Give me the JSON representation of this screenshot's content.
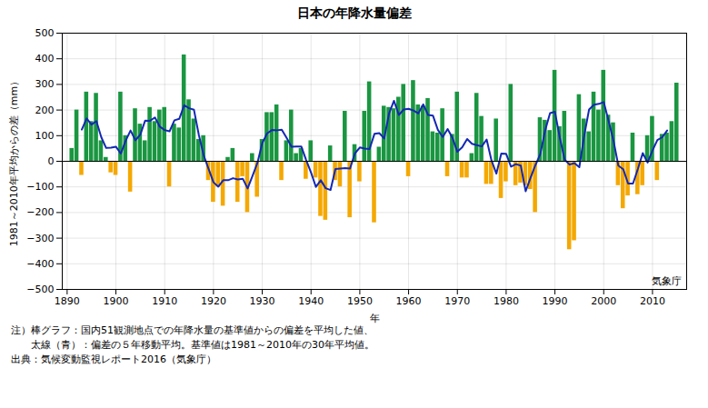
{
  "chart_data": {
    "type": "bar",
    "title": "日本の年降水量偏差",
    "xlabel": "年",
    "ylabel": "1981～2010年平均からの差（mm）",
    "annotations": [
      "気象庁",
      "注）棒グラフ：国内51観測地点での年降水量の基準値からの偏差を平均した値、",
      "　　太線（青）：偏差の５年移動平均。基準値は1981～2010年の30年平均値。",
      "出典：気候変動監視レポート2016（気象庁）"
    ],
    "x": [
      1891,
      1892,
      1893,
      1894,
      1895,
      1896,
      1897,
      1898,
      1899,
      1900,
      1901,
      1902,
      1903,
      1904,
      1905,
      1906,
      1907,
      1908,
      1909,
      1910,
      1911,
      1912,
      1913,
      1914,
      1915,
      1916,
      1917,
      1918,
      1919,
      1920,
      1921,
      1922,
      1923,
      1924,
      1925,
      1926,
      1927,
      1928,
      1929,
      1930,
      1931,
      1932,
      1933,
      1934,
      1935,
      1936,
      1937,
      1938,
      1939,
      1940,
      1941,
      1942,
      1943,
      1944,
      1945,
      1946,
      1947,
      1948,
      1949,
      1950,
      1951,
      1952,
      1953,
      1954,
      1955,
      1956,
      1957,
      1958,
      1959,
      1960,
      1961,
      1962,
      1963,
      1964,
      1965,
      1966,
      1967,
      1968,
      1969,
      1970,
      1971,
      1972,
      1973,
      1974,
      1975,
      1976,
      1977,
      1978,
      1979,
      1980,
      1981,
      1982,
      1983,
      1984,
      1985,
      1986,
      1987,
      1988,
      1989,
      1990,
      1991,
      1992,
      1993,
      1994,
      1995,
      1996,
      1997,
      1998,
      1999,
      2000,
      2001,
      2002,
      2003,
      2004,
      2005,
      2006,
      2007,
      2008,
      2009,
      2010,
      2011,
      2012,
      2013,
      2014,
      2015
    ],
    "series": [
      {
        "type": "bar",
        "values": [
          50,
          200,
          -55,
          270,
          155,
          265,
          80,
          15,
          -45,
          -55,
          270,
          100,
          -120,
          205,
          145,
          80,
          210,
          155,
          200,
          210,
          -100,
          145,
          130,
          415,
          240,
          165,
          85,
          100,
          -75,
          -160,
          -100,
          -175,
          15,
          50,
          -160,
          -60,
          -200,
          30,
          -140,
          85,
          190,
          190,
          220,
          -75,
          80,
          200,
          30,
          50,
          -70,
          80,
          -65,
          -215,
          -230,
          60,
          -75,
          -100,
          195,
          -220,
          65,
          -80,
          195,
          310,
          -240,
          55,
          215,
          210,
          205,
          250,
          300,
          -60,
          315,
          220,
          215,
          245,
          115,
          110,
          205,
          -60,
          105,
          270,
          -65,
          -65,
          30,
          265,
          175,
          -90,
          -90,
          165,
          -145,
          -80,
          300,
          -95,
          -85,
          -95,
          -110,
          -200,
          170,
          160,
          120,
          355,
          135,
          195,
          -345,
          -310,
          260,
          165,
          115,
          270,
          200,
          355,
          180,
          150,
          -95,
          -185,
          -135,
          110,
          -130,
          -95,
          100,
          175,
          -75,
          105,
          110,
          155,
          305
        ],
        "colors": [
          "#1a9641",
          "#1a9641",
          "#f4a800",
          "#1a9641",
          "#1a9641",
          "#1a9641",
          "#1a9641",
          "#1a9641",
          "#f4a800",
          "#f4a800",
          "#1a9641",
          "#1a9641",
          "#f4a800",
          "#1a9641",
          "#1a9641",
          "#1a9641",
          "#1a9641",
          "#1a9641",
          "#1a9641",
          "#1a9641",
          "#f4a800",
          "#1a9641",
          "#1a9641",
          "#1a9641",
          "#1a9641",
          "#1a9641",
          "#1a9641",
          "#1a9641",
          "#f4a800",
          "#f4a800",
          "#f4a800",
          "#f4a800",
          "#1a9641",
          "#1a9641",
          "#f4a800",
          "#f4a800",
          "#f4a800",
          "#1a9641",
          "#f4a800",
          "#1a9641",
          "#1a9641",
          "#1a9641",
          "#1a9641",
          "#f4a800",
          "#1a9641",
          "#1a9641",
          "#1a9641",
          "#1a9641",
          "#f4a800",
          "#1a9641",
          "#f4a800",
          "#f4a800",
          "#f4a800",
          "#1a9641",
          "#f4a800",
          "#f4a800",
          "#1a9641",
          "#f4a800",
          "#1a9641",
          "#f4a800",
          "#1a9641",
          "#1a9641",
          "#f4a800",
          "#1a9641",
          "#1a9641",
          "#1a9641",
          "#1a9641",
          "#1a9641",
          "#1a9641",
          "#f4a800",
          "#1a9641",
          "#1a9641",
          "#1a9641",
          "#1a9641",
          "#1a9641",
          "#1a9641",
          "#1a9641",
          "#f4a800",
          "#1a9641",
          "#1a9641",
          "#f4a800",
          "#f4a800",
          "#1a9641",
          "#1a9641",
          "#1a9641",
          "#f4a800",
          "#f4a800",
          "#1a9641",
          "#f4a800",
          "#f4a800",
          "#1a9641",
          "#f4a800",
          "#f4a800",
          "#f4a800",
          "#f4a800",
          "#f4a800",
          "#1a9641",
          "#1a9641",
          "#1a9641",
          "#1a9641",
          "#1a9641",
          "#1a9641",
          "#f4a800",
          "#f4a800",
          "#1a9641",
          "#1a9641",
          "#1a9641",
          "#1a9641",
          "#1a9641",
          "#1a9641",
          "#1a9641",
          "#1a9641",
          "#f4a800",
          "#f4a800",
          "#f4a800",
          "#1a9641",
          "#f4a800",
          "#f4a800",
          "#1a9641",
          "#1a9641",
          "#f4a800",
          "#1a9641",
          "#1a9641",
          "#1a9641",
          "#1a9641"
        ]
      },
      {
        "type": "line",
        "color": "#1428b4",
        "values": [
          null,
          null,
          124,
          167,
          143,
          157,
          94,
          52,
          53,
          57,
          30,
          80,
          120,
          82,
          104,
          159,
          158,
          171,
          135,
          122,
          117,
          160,
          166,
          219,
          207,
          201,
          103,
          23,
          -30,
          -82,
          -99,
          -74,
          -74,
          -66,
          -71,
          -68,
          -106,
          -57,
          -7,
          71,
          109,
          122,
          121,
          123,
          91,
          57,
          58,
          58,
          5,
          -44,
          -100,
          -74,
          -105,
          -112,
          -30,
          -28,
          -27,
          -28,
          31,
          54,
          50,
          48,
          107,
          110,
          89,
          187,
          236,
          181,
          202,
          205,
          198,
          187,
          222,
          181,
          178,
          123,
          95,
          126,
          91,
          37,
          55,
          87,
          68,
          63,
          58,
          85,
          3,
          -48,
          30,
          29,
          -21,
          -11,
          -17,
          -117,
          -64,
          -15,
          28,
          121,
          188,
          193,
          92,
          6,
          -13,
          -7,
          -23,
          100,
          202,
          221,
          224,
          231,
          158,
          81,
          -17,
          -31,
          -87,
          -87,
          -30,
          32,
          -5,
          42,
          83,
          94,
          120,
          null,
          null
        ]
      }
    ],
    "xlim": [
      1889,
      2017
    ],
    "ylim": [
      -500,
      500
    ],
    "xticks": [
      1890,
      1900,
      1910,
      1920,
      1930,
      1940,
      1950,
      1960,
      1970,
      1980,
      1990,
      2000,
      2010
    ],
    "yticks": [
      -500,
      -400,
      -300,
      -200,
      -100,
      0,
      100,
      200,
      300,
      400,
      500
    ],
    "grid": true
  }
}
